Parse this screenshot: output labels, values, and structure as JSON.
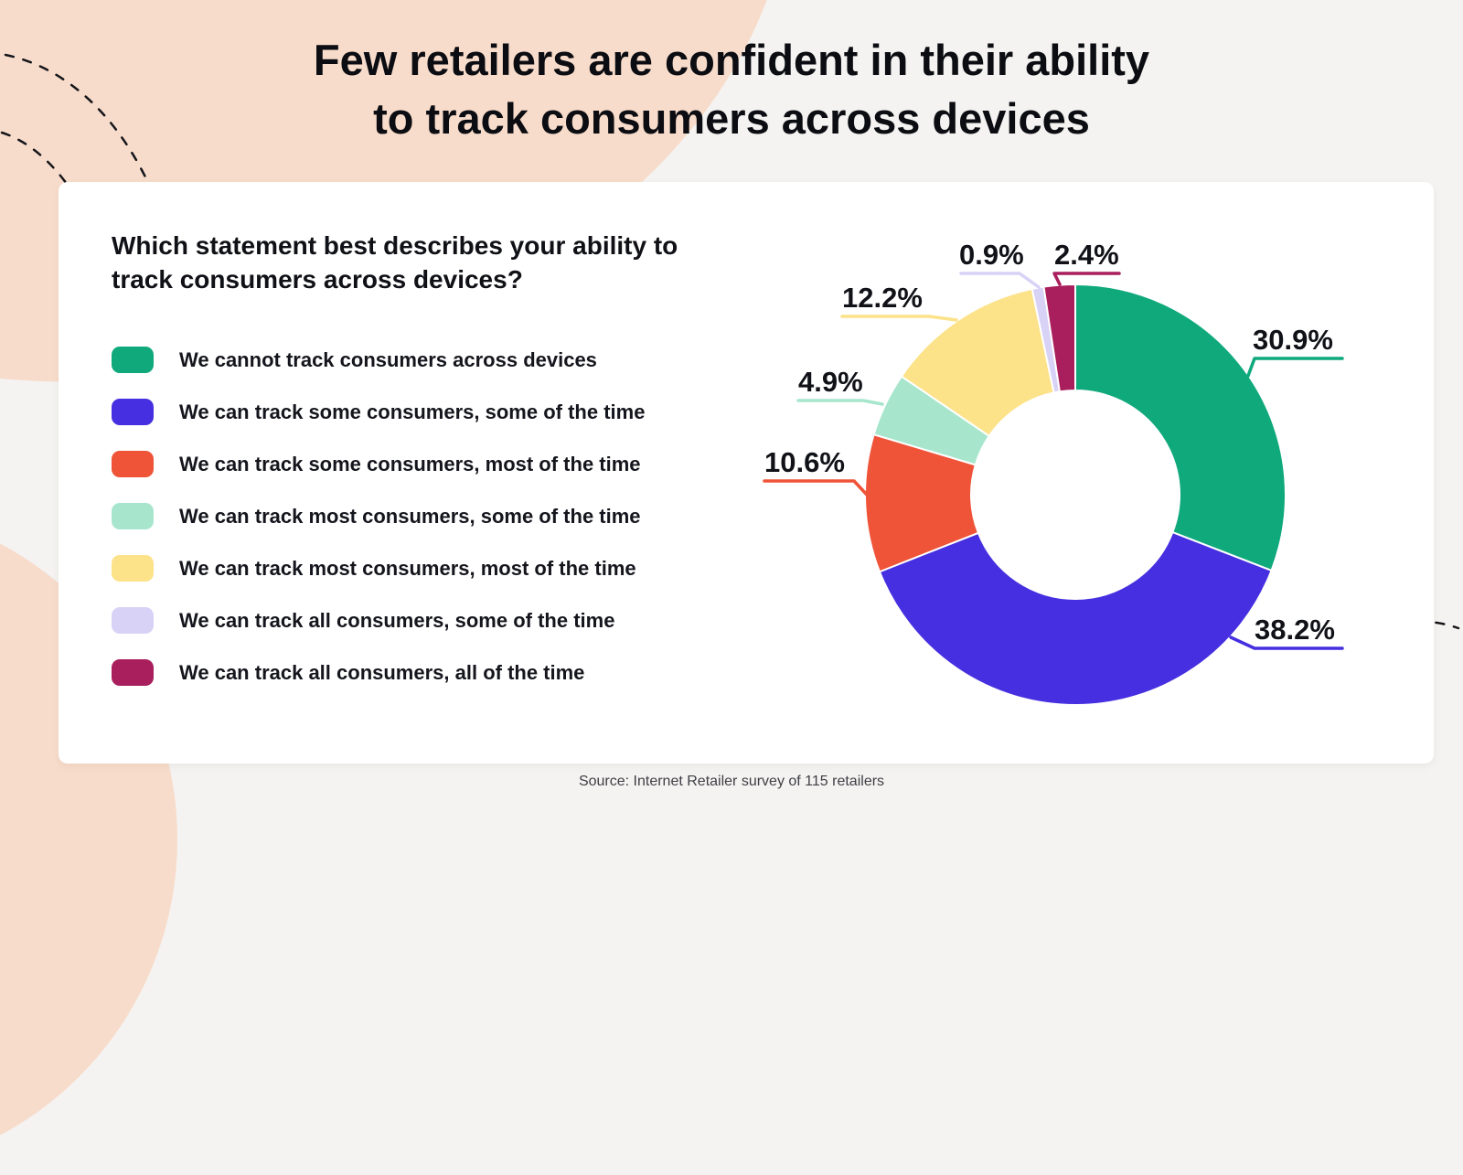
{
  "page": {
    "title_line1": "Few retailers are confident in their ability",
    "title_line2": "to track consumers across devices",
    "source": "Source: Internet Retailer survey of 115 retailers"
  },
  "theme": {
    "background": "#f4f3f1",
    "blob": "#f8dccb",
    "card": "#ffffff",
    "text": "#101116"
  },
  "chart_data": {
    "type": "pie",
    "subtype": "donut",
    "title": "Which statement best describes your ability to track consumers across devices?",
    "legend_position": "left",
    "start_angle_deg": 0,
    "direction": "clockwise",
    "slices": [
      {
        "label": "We cannot track consumers across devices",
        "value": 30.9,
        "display": "30.9%",
        "color": "#0fa97c"
      },
      {
        "label": "We can track some consumers, some of the time",
        "value": 38.2,
        "display": "38.2%",
        "color": "#452fe0"
      },
      {
        "label": "We can track some consumers, most of the time",
        "value": 10.6,
        "display": "10.6%",
        "color": "#ef5338"
      },
      {
        "label": "We can track most consumers, some of the time",
        "value": 4.9,
        "display": "4.9%",
        "color": "#a7e6cd"
      },
      {
        "label": "We can track most consumers, most of the time",
        "value": 12.2,
        "display": "12.2%",
        "color": "#fce289"
      },
      {
        "label": "We can track all consumers, some of the time",
        "value": 0.9,
        "display": "0.9%",
        "color": "#d8d2f6"
      },
      {
        "label": "We can track all consumers, all of the time",
        "value": 2.4,
        "display": "2.4%",
        "color": "#a91e5d"
      }
    ]
  }
}
